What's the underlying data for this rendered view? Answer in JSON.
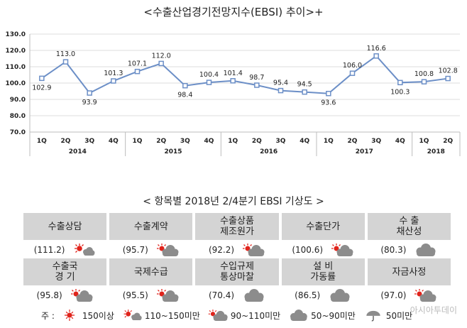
{
  "chart_data": {
    "type": "line",
    "title": "<수출산업경기전망지수(EBSI) 추이>+",
    "xlabel": "",
    "ylabel": "",
    "ylim": [
      70,
      130
    ],
    "yticks": [
      "70.0",
      "80.0",
      "90.0",
      "100.0",
      "110.0",
      "120.0",
      "130.0"
    ],
    "categories": [
      "1Q",
      "2Q",
      "3Q",
      "4Q",
      "1Q",
      "2Q",
      "3Q",
      "4Q",
      "1Q",
      "2Q",
      "3Q",
      "4Q",
      "1Q",
      "2Q",
      "3Q",
      "4Q",
      "1Q",
      "2Q"
    ],
    "years": [
      "2014",
      "2015",
      "2016",
      "2017",
      "2018"
    ],
    "values": [
      102.9,
      113.0,
      93.9,
      101.3,
      107.1,
      112.0,
      98.4,
      100.4,
      101.4,
      98.7,
      95.4,
      94.5,
      93.6,
      106.0,
      116.6,
      100.3,
      100.8,
      102.8
    ],
    "value_labels": [
      "102.9",
      "113.0",
      "93.9",
      "101.3",
      "107.1",
      "112.0",
      "98.4",
      "100.4",
      "101.4",
      "98.7",
      "95.4",
      "94.5",
      "93.6",
      "106.0",
      "116.6",
      "100.3",
      "100.8",
      "102.8"
    ],
    "grid": true,
    "line_color": "#6c8fc7"
  },
  "items_title": "< 항목별 2018년 2/4분기 EBSI 기상도 >",
  "items": [
    {
      "name": "수출상담",
      "value": "(111.2)",
      "icon": "sun-cloud-icon"
    },
    {
      "name": "수출계약",
      "value": "(95.7)",
      "icon": "cloud-sun-icon"
    },
    {
      "name": "수출상품\n제조원가",
      "value": "(92.2)",
      "icon": "cloud-sun-icon"
    },
    {
      "name": "수출단가",
      "value": "(100.6)",
      "icon": "cloud-sun-icon"
    },
    {
      "name": "수  출\n채산성",
      "value": "(80.3)",
      "icon": "cloud-icon"
    },
    {
      "name": "수출국\n경  기",
      "value": "(95.8)",
      "icon": "cloud-sun-icon"
    },
    {
      "name": "국제수급",
      "value": "(95.5)",
      "icon": "cloud-sun-icon"
    },
    {
      "name": "수입규제\n통상마찰",
      "value": "(70.4)",
      "icon": "cloud-icon"
    },
    {
      "name": "설    비\n가동률",
      "value": "(86.5)",
      "icon": "cloud-icon"
    },
    {
      "name": "자금사정",
      "value": "(97.0)",
      "icon": "cloud-sun-icon"
    }
  ],
  "legend": {
    "prefix": "주 :",
    "entries": [
      {
        "label": "150이상",
        "icon": "sun-icon"
      },
      {
        "label": "110~150미만",
        "icon": "sun-cloud-icon"
      },
      {
        "label": "90~110미만",
        "icon": "cloud-sun-icon"
      },
      {
        "label": "50~90미만",
        "icon": "cloud-icon"
      },
      {
        "label": "50미만",
        "icon": "rain-icon"
      }
    ]
  },
  "watermark": "아시아투데이",
  "colors": {
    "sun": "#e0231b",
    "cloud": "#8c8c8c",
    "header_bg": "#d4d4d4"
  }
}
